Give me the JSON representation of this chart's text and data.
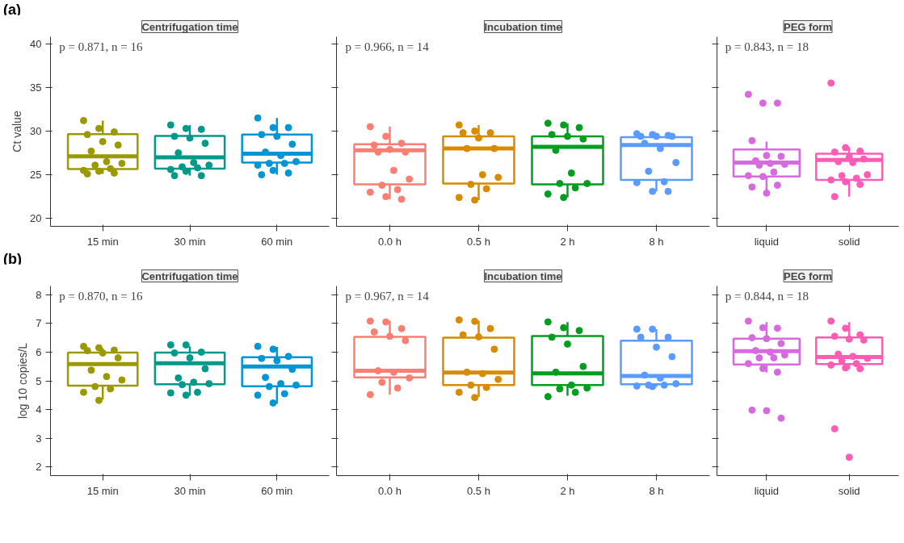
{
  "chart_data": [
    {
      "type": "box",
      "title": "Centrifugation time",
      "ylabel": "Ct value",
      "annotations": [
        "(a)",
        "p = 0.871, n = 16"
      ],
      "categories": [
        "15 min",
        "30 min",
        "60 min"
      ],
      "colors": [
        "#9a9a00",
        "#00998a",
        "#0096d6"
      ],
      "ylim": [
        19.1,
        40.8
      ],
      "yticks": [
        20,
        25,
        30,
        35,
        40
      ],
      "grid": false,
      "marker": "circle",
      "boxes": [
        {
          "low": 25.1,
          "q1": 25.65,
          "median": 27.1,
          "q3": 29.65,
          "high": 31.2
        },
        {
          "low": 24.9,
          "q1": 25.7,
          "median": 27.0,
          "q3": 29.45,
          "high": 30.7
        },
        {
          "low": 25.0,
          "q1": 26.4,
          "median": 27.4,
          "q3": 29.6,
          "high": 31.5
        }
      ],
      "series": [
        {
          "type": "scatter",
          "color": "#9a9a00",
          "x": [
            "15 min",
            "15 min",
            "15 min",
            "15 min",
            "15 min",
            "15 min",
            "15 min",
            "15 min",
            "15 min",
            "15 min",
            "15 min",
            "15 min",
            "15 min",
            "15 min",
            "15 min"
          ],
          "values": [
            31.2,
            30.3,
            29.9,
            29.6,
            28.8,
            28.4,
            27.7,
            26.5,
            26.3,
            26.1,
            25.7,
            25.5,
            25.4,
            25.2,
            25.1
          ]
        },
        {
          "type": "scatter",
          "color": "#00998a",
          "x": [
            "30 min",
            "30 min",
            "30 min",
            "30 min",
            "30 min",
            "30 min",
            "30 min",
            "30 min",
            "30 min",
            "30 min",
            "30 min",
            "30 min",
            "30 min",
            "30 min",
            "30 min"
          ],
          "values": [
            30.7,
            30.3,
            30.2,
            29.4,
            29.2,
            28.6,
            27.5,
            26.4,
            26.1,
            25.9,
            25.8,
            25.6,
            25.4,
            24.9,
            24.9
          ]
        },
        {
          "type": "scatter",
          "color": "#0096d6",
          "x": [
            "60 min",
            "60 min",
            "60 min",
            "60 min",
            "60 min",
            "60 min",
            "60 min",
            "60 min",
            "60 min",
            "60 min",
            "60 min",
            "60 min",
            "60 min",
            "60 min",
            "60 min"
          ],
          "values": [
            31.5,
            30.4,
            30.4,
            29.6,
            29.4,
            28.5,
            27.6,
            27.2,
            26.5,
            26.3,
            26.3,
            26.1,
            25.5,
            25.2,
            25.0
          ]
        }
      ]
    },
    {
      "type": "box",
      "title": "Incubation time",
      "annotations": [
        "p = 0.966, n = 14"
      ],
      "categories": [
        "0.0 h",
        "0.5 h",
        "2 h",
        "8 h"
      ],
      "colors": [
        "#fa7f72",
        "#d88a00",
        "#009e1f",
        "#5a9bff"
      ],
      "ylim": [
        19.1,
        40.8
      ],
      "yticks": [
        20,
        25,
        30,
        35,
        40
      ],
      "tick_labels": "x",
      "grid": false,
      "marker": "circle",
      "boxes": [
        {
          "low": 22.2,
          "q1": 23.9,
          "median": 27.8,
          "q3": 28.5,
          "high": 30.5
        },
        {
          "low": 22.1,
          "q1": 24.0,
          "median": 28.0,
          "q3": 29.4,
          "high": 30.7
        },
        {
          "low": 22.4,
          "q1": 23.9,
          "median": 28.2,
          "q3": 29.4,
          "high": 30.9
        },
        {
          "low": 23.1,
          "q1": 24.4,
          "median": 28.4,
          "q3": 29.3,
          "high": 29.7
        }
      ],
      "series": [
        {
          "type": "scatter",
          "color": "#fa7f72",
          "x": [
            "0.0 h",
            "0.0 h",
            "0.0 h",
            "0.0 h",
            "0.0 h",
            "0.0 h",
            "0.0 h",
            "0.0 h",
            "0.0 h",
            "0.0 h",
            "0.0 h",
            "0.0 h",
            "0.0 h",
            "0.0 h"
          ],
          "values": [
            30.5,
            29.4,
            28.6,
            28.4,
            27.9,
            27.6,
            27.6,
            25.5,
            24.5,
            23.8,
            23.3,
            23.0,
            22.5,
            22.2
          ]
        },
        {
          "type": "scatter",
          "color": "#d88a00",
          "x": [
            "0.5 h",
            "0.5 h",
            "0.5 h",
            "0.5 h",
            "0.5 h",
            "0.5 h",
            "0.5 h",
            "0.5 h",
            "0.5 h",
            "0.5 h",
            "0.5 h",
            "0.5 h",
            "0.5 h"
          ],
          "values": [
            30.7,
            30.0,
            29.8,
            29.8,
            29.2,
            28.0,
            28.0,
            25.0,
            24.7,
            23.9,
            23.4,
            22.4,
            22.1
          ]
        },
        {
          "type": "scatter",
          "color": "#009e1f",
          "x": [
            "2 h",
            "2 h",
            "2 h",
            "2 h",
            "2 h",
            "2 h",
            "2 h",
            "2 h",
            "2 h",
            "2 h",
            "2 h",
            "2 h",
            "2 h"
          ],
          "values": [
            30.9,
            30.7,
            30.4,
            29.6,
            29.4,
            29.1,
            27.8,
            25.2,
            24.0,
            24.0,
            23.5,
            22.8,
            22.4
          ]
        },
        {
          "type": "scatter",
          "color": "#5a9bff",
          "x": [
            "8 h",
            "8 h",
            "8 h",
            "8 h",
            "8 h",
            "8 h",
            "8 h",
            "8 h",
            "8 h",
            "8 h",
            "8 h",
            "8 h",
            "8 h",
            "8 h"
          ],
          "values": [
            29.7,
            29.6,
            29.5,
            29.4,
            29.4,
            29.4,
            28.6,
            28.0,
            26.4,
            25.4,
            24.2,
            24.1,
            23.1,
            23.1
          ]
        }
      ]
    },
    {
      "type": "box",
      "title": "PEG form",
      "annotations": [
        "p = 0.843, n = 18"
      ],
      "categories": [
        "liquid",
        "solid"
      ],
      "colors": [
        "#d86ae0",
        "#ff5cb6"
      ],
      "ylim": [
        19.1,
        40.8
      ],
      "yticks": [
        20,
        25,
        30,
        35,
        40
      ],
      "tick_labels": "x",
      "grid": false,
      "marker": "circle",
      "boxes": [
        {
          "low": 23.0,
          "q1": 24.8,
          "median": 26.4,
          "q3": 27.9,
          "high": 28.8
        },
        {
          "low": 22.5,
          "q1": 24.4,
          "median": 26.7,
          "q3": 27.4,
          "high": 28.1
        }
      ],
      "series": [
        {
          "type": "scatter",
          "color": "#d86ae0",
          "x": [
            "liquid",
            "liquid",
            "liquid",
            "liquid",
            "liquid",
            "liquid",
            "liquid",
            "liquid",
            "liquid",
            "liquid",
            "liquid",
            "liquid",
            "liquid",
            "liquid",
            "liquid",
            "liquid"
          ],
          "values": [
            34.2,
            33.2,
            33.2,
            28.9,
            27.2,
            27.1,
            26.6,
            26.3,
            26.2,
            26.1,
            25.3,
            24.9,
            24.8,
            23.8,
            23.6,
            22.9
          ]
        },
        {
          "type": "scatter",
          "color": "#ff5cb6",
          "x": [
            "solid",
            "solid",
            "solid",
            "solid",
            "solid",
            "solid",
            "solid",
            "solid",
            "solid",
            "solid",
            "solid",
            "solid",
            "solid",
            "solid",
            "solid"
          ],
          "values": [
            35.5,
            28.1,
            27.7,
            27.6,
            27.0,
            26.8,
            26.5,
            26.4,
            25.0,
            24.9,
            24.6,
            24.4,
            24.2,
            23.9,
            22.5
          ]
        }
      ]
    },
    {
      "type": "box",
      "title": "Centrifugation time",
      "ylabel": "log 10 copies/L",
      "annotations": [
        "(b)",
        "p = 0.870, n = 16"
      ],
      "categories": [
        "15 min",
        "30 min",
        "60 min"
      ],
      "colors": [
        "#9a9a00",
        "#00998a",
        "#0096d6"
      ],
      "ylim": [
        1.7,
        8.3
      ],
      "yticks": [
        2,
        3,
        4,
        5,
        6,
        7,
        8
      ],
      "grid": false,
      "marker": "circle",
      "boxes": [
        {
          "low": 4.35,
          "q1": 4.83,
          "median": 5.58,
          "q3": 5.98,
          "high": 6.14
        },
        {
          "low": 4.48,
          "q1": 4.88,
          "median": 5.61,
          "q3": 5.98,
          "high": 6.2
        },
        {
          "low": 4.2,
          "q1": 4.81,
          "median": 5.5,
          "q3": 5.82,
          "high": 6.18
        }
      ],
      "series": [
        {
          "type": "scatter",
          "color": "#9a9a00",
          "x": [
            "15 min",
            "15 min",
            "15 min",
            "15 min",
            "15 min",
            "15 min",
            "15 min",
            "15 min",
            "15 min",
            "15 min",
            "15 min",
            "15 min",
            "15 min"
          ],
          "values": [
            6.2,
            6.15,
            6.07,
            6.05,
            5.97,
            5.8,
            5.37,
            5.15,
            5.03,
            4.8,
            4.72,
            4.6,
            4.32
          ]
        },
        {
          "type": "scatter",
          "color": "#00998a",
          "x": [
            "30 min",
            "30 min",
            "30 min",
            "30 min",
            "30 min",
            "30 min",
            "30 min",
            "30 min",
            "30 min",
            "30 min",
            "30 min",
            "30 min",
            "30 min"
          ],
          "values": [
            6.25,
            6.25,
            6.0,
            5.97,
            5.8,
            5.42,
            5.1,
            4.95,
            4.9,
            4.87,
            4.6,
            4.58,
            4.5
          ]
        },
        {
          "type": "scatter",
          "color": "#0096d6",
          "x": [
            "60 min",
            "60 min",
            "60 min",
            "60 min",
            "60 min",
            "60 min",
            "60 min",
            "60 min",
            "60 min",
            "60 min",
            "60 min",
            "60 min",
            "60 min"
          ],
          "values": [
            6.2,
            6.1,
            5.85,
            5.78,
            5.7,
            5.4,
            5.12,
            4.9,
            4.85,
            4.8,
            4.55,
            4.5,
            4.23
          ]
        }
      ]
    },
    {
      "type": "box",
      "title": "Incubation time",
      "annotations": [
        "p = 0.967, n = 14"
      ],
      "categories": [
        "0.0 h",
        "0.5 h",
        "2 h",
        "8 h"
      ],
      "colors": [
        "#fa7f72",
        "#d88a00",
        "#009e1f",
        "#5a9bff"
      ],
      "ylim": [
        1.7,
        8.3
      ],
      "yticks": [
        2,
        3,
        4,
        5,
        6,
        7,
        8
      ],
      "tick_labels": "x",
      "grid": false,
      "marker": "circle",
      "boxes": [
        {
          "low": 4.52,
          "q1": 5.12,
          "median": 5.35,
          "q3": 6.53,
          "high": 7.09
        },
        {
          "low": 4.43,
          "q1": 4.85,
          "median": 5.29,
          "q3": 6.5,
          "high": 7.09
        },
        {
          "low": 4.48,
          "q1": 4.85,
          "median": 5.26,
          "q3": 6.56,
          "high": 7.04
        },
        {
          "low": 4.79,
          "q1": 4.88,
          "median": 5.17,
          "q3": 6.4,
          "high": 6.8
        }
      ],
      "series": [
        {
          "type": "scatter",
          "color": "#fa7f72",
          "x": [
            "0.0 h",
            "0.0 h",
            "0.0 h",
            "0.0 h",
            "0.0 h",
            "0.0 h",
            "0.0 h",
            "0.0 h",
            "0.0 h",
            "0.0 h",
            "0.0 h",
            "0.0 h"
          ],
          "values": [
            7.08,
            7.05,
            6.82,
            6.7,
            6.55,
            6.4,
            5.35,
            5.3,
            5.1,
            4.95,
            4.75,
            4.52
          ]
        },
        {
          "type": "scatter",
          "color": "#d88a00",
          "x": [
            "0.5 h",
            "0.5 h",
            "0.5 h",
            "0.5 h",
            "0.5 h",
            "0.5 h",
            "0.5 h",
            "0.5 h",
            "0.5 h",
            "0.5 h",
            "0.5 h",
            "0.5 h",
            "0.5 h"
          ],
          "values": [
            7.12,
            7.07,
            6.82,
            6.6,
            6.53,
            6.1,
            5.3,
            5.25,
            5.05,
            4.85,
            4.77,
            4.6,
            4.42
          ]
        },
        {
          "type": "scatter",
          "color": "#009e1f",
          "x": [
            "2 h",
            "2 h",
            "2 h",
            "2 h",
            "2 h",
            "2 h",
            "2 h",
            "2 h",
            "2 h",
            "2 h",
            "2 h",
            "2 h"
          ],
          "values": [
            7.05,
            6.85,
            6.75,
            6.52,
            6.28,
            5.5,
            5.3,
            4.85,
            4.75,
            4.72,
            4.6,
            4.45
          ]
        },
        {
          "type": "scatter",
          "color": "#5a9bff",
          "x": [
            "8 h",
            "8 h",
            "8 h",
            "8 h",
            "8 h",
            "8 h",
            "8 h",
            "8 h",
            "8 h",
            "8 h",
            "8 h",
            "8 h",
            "8 h"
          ],
          "values": [
            6.8,
            6.8,
            6.52,
            6.52,
            6.17,
            5.84,
            5.2,
            5.1,
            4.9,
            4.85,
            4.85,
            4.82,
            4.8
          ]
        }
      ]
    },
    {
      "type": "box",
      "title": "PEG form",
      "annotations": [
        "p = 0.844, n = 18"
      ],
      "categories": [
        "liquid",
        "solid"
      ],
      "colors": [
        "#d86ae0",
        "#ff5cb6"
      ],
      "ylim": [
        1.7,
        8.3
      ],
      "yticks": [
        2,
        3,
        4,
        5,
        6,
        7,
        8
      ],
      "tick_labels": "x",
      "grid": false,
      "marker": "circle",
      "boxes": [
        {
          "low": 5.29,
          "q1": 5.57,
          "median": 6.03,
          "q3": 6.47,
          "high": 7.04
        },
        {
          "low": 5.41,
          "q1": 5.58,
          "median": 5.83,
          "q3": 6.51,
          "high": 7.04
        }
      ],
      "series": [
        {
          "type": "scatter",
          "color": "#d86ae0",
          "x": [
            "liquid",
            "liquid",
            "liquid",
            "liquid",
            "liquid",
            "liquid",
            "liquid",
            "liquid",
            "liquid",
            "liquid",
            "liquid",
            "liquid",
            "liquid",
            "liquid",
            "liquid",
            "liquid",
            "liquid"
          ],
          "values": [
            7.08,
            6.85,
            6.83,
            6.5,
            6.47,
            6.3,
            6.05,
            6.0,
            5.9,
            5.8,
            5.8,
            5.6,
            5.43,
            5.3,
            3.98,
            3.96,
            3.7
          ]
        },
        {
          "type": "scatter",
          "color": "#ff5cb6",
          "x": [
            "solid",
            "solid",
            "solid",
            "solid",
            "solid",
            "solid",
            "solid",
            "solid",
            "solid",
            "solid",
            "solid",
            "solid",
            "solid",
            "solid",
            "solid",
            "solid"
          ],
          "values": [
            7.08,
            6.83,
            6.6,
            6.55,
            6.45,
            6.42,
            5.93,
            5.85,
            5.78,
            5.7,
            5.6,
            5.55,
            5.45,
            5.42,
            3.33,
            2.34
          ]
        }
      ]
    }
  ]
}
